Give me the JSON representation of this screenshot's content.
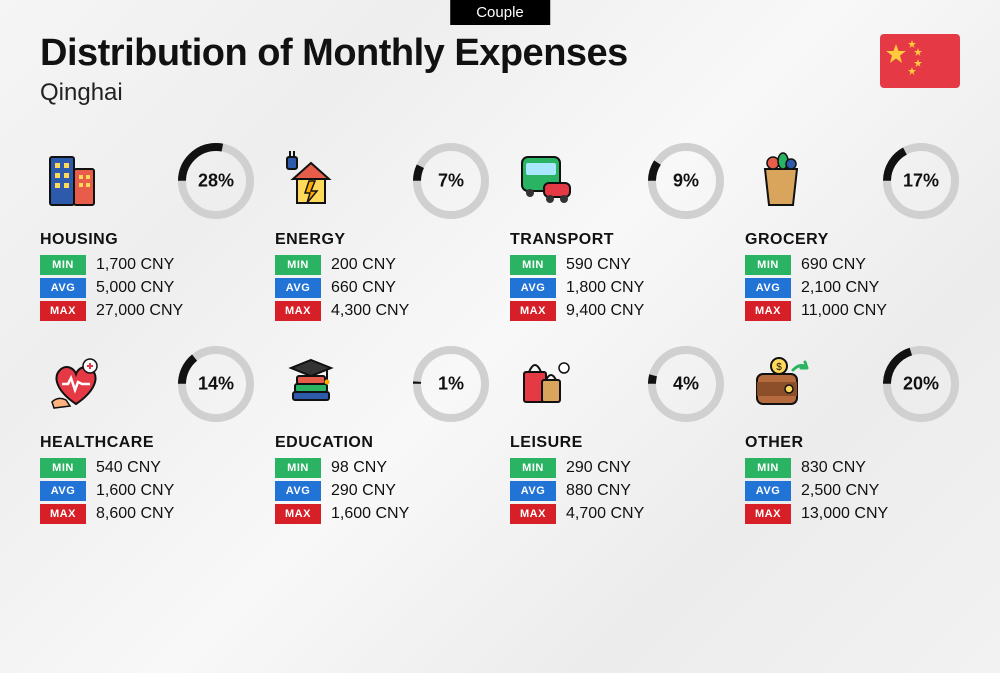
{
  "badge": "Couple",
  "title": "Distribution of Monthly Expenses",
  "subtitle": "Qinghai",
  "currency": "CNY",
  "flag": {
    "bg": "#e63946",
    "star": "#ffcd3c"
  },
  "stat_labels": {
    "min": "MIN",
    "avg": "AVG",
    "max": "MAX"
  },
  "stat_colors": {
    "min": "#2ab362",
    "avg": "#2173d6",
    "max": "#d61f26"
  },
  "donut": {
    "ring_color": "#d0d0d0",
    "fill_color": "#111111",
    "ring_width": 8,
    "radius": 34
  },
  "categories": [
    {
      "key": "housing",
      "name": "HOUSING",
      "percent": 28,
      "min": "1,700",
      "avg": "5,000",
      "max": "27,000",
      "icon": "building"
    },
    {
      "key": "energy",
      "name": "ENERGY",
      "percent": 7,
      "min": "200",
      "avg": "660",
      "max": "4,300",
      "icon": "energy"
    },
    {
      "key": "transport",
      "name": "TRANSPORT",
      "percent": 9,
      "min": "590",
      "avg": "1,800",
      "max": "9,400",
      "icon": "transport"
    },
    {
      "key": "grocery",
      "name": "GROCERY",
      "percent": 17,
      "min": "690",
      "avg": "2,100",
      "max": "11,000",
      "icon": "grocery"
    },
    {
      "key": "healthcare",
      "name": "HEALTHCARE",
      "percent": 14,
      "min": "540",
      "avg": "1,600",
      "max": "8,600",
      "icon": "healthcare"
    },
    {
      "key": "education",
      "name": "EDUCATION",
      "percent": 1,
      "min": "98",
      "avg": "290",
      "max": "1,600",
      "icon": "education"
    },
    {
      "key": "leisure",
      "name": "LEISURE",
      "percent": 4,
      "min": "290",
      "avg": "880",
      "max": "4,700",
      "icon": "leisure"
    },
    {
      "key": "other",
      "name": "OTHER",
      "percent": 20,
      "min": "830",
      "avg": "2,500",
      "max": "13,000",
      "icon": "other"
    }
  ],
  "icon_colors": {
    "building_a": "#2e5aac",
    "building_b": "#e85d4a",
    "building_win": "#ffd95a",
    "energy_house": "#ffd95a",
    "energy_roof": "#e85d4a",
    "energy_bolt": "#ffaa00",
    "energy_plug": "#2e5aac",
    "bus": "#2ab362",
    "bus_win": "#a9e6ff",
    "car": "#e63946",
    "bag": "#d9a45b",
    "veg1": "#2ab362",
    "veg2": "#e85d4a",
    "veg3": "#2e5aac",
    "heart": "#e63946",
    "hand": "#ffb380",
    "pulse": "#ffffff",
    "plus": "#e63946",
    "book1": "#e85d4a",
    "book2": "#2ab362",
    "book3": "#2e5aac",
    "hat": "#333333",
    "shop1": "#e63946",
    "shop2": "#d9a45b",
    "wallet": "#b56b3e",
    "wallet_in": "#8c4f2a",
    "coin": "#ffd95a",
    "arrow": "#2ab362"
  }
}
